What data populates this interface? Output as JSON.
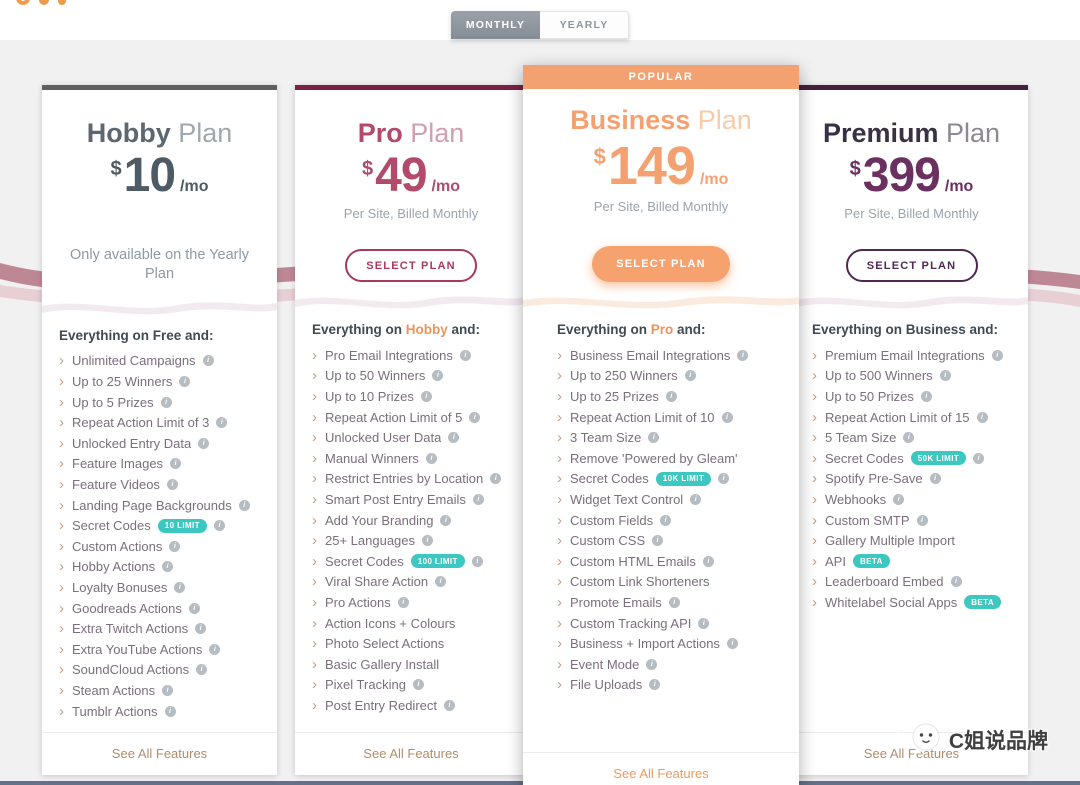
{
  "colors": {
    "page_bg": "#f1f1f2",
    "popular_orange": "#f4a172",
    "pro_crimson": "#a8395e",
    "premium_purple": "#4f2950",
    "hobby_gray": "#5d6770",
    "badge_teal": "#3cc8c1",
    "wave_mauve": "#bd8794"
  },
  "toggle": {
    "monthly_label": "MONTHLY",
    "yearly_label": "YEARLY",
    "selected": "monthly"
  },
  "plans": [
    {
      "id": "hobby",
      "title_bold": "Hobby",
      "title_light": "Plan",
      "currency": "$",
      "amount": "10",
      "period": "/mo",
      "note": "Only available on the Yearly Plan",
      "heading": {
        "prefix": "Everything on ",
        "highlight": "Free",
        "suffix": " and:"
      },
      "features": [
        {
          "label": "Unlimited Campaigns",
          "info": true
        },
        {
          "label": "Up to 25 Winners",
          "info": true
        },
        {
          "label": "Up to 5 Prizes",
          "info": true
        },
        {
          "label": "Repeat Action Limit of 3",
          "info": true
        },
        {
          "label": "Unlocked Entry Data",
          "info": true
        },
        {
          "label": "Feature Images",
          "info": true
        },
        {
          "label": "Feature Videos",
          "info": true
        },
        {
          "label": "Landing Page Backgrounds",
          "info": true
        },
        {
          "label": "Secret Codes",
          "badge": "10 LIMIT",
          "info": true
        },
        {
          "label": "Custom Actions",
          "info": true
        },
        {
          "label": "Hobby Actions",
          "info": true
        },
        {
          "label": "Loyalty Bonuses",
          "info": true
        },
        {
          "label": "Goodreads Actions",
          "info": true
        },
        {
          "label": "Extra Twitch Actions",
          "info": true
        },
        {
          "label": "Extra YouTube Actions",
          "info": true
        },
        {
          "label": "SoundCloud Actions",
          "info": true
        },
        {
          "label": "Steam Actions",
          "info": true
        },
        {
          "label": "Tumblr Actions",
          "info": true
        }
      ],
      "see_all_label": "See All Features"
    },
    {
      "id": "pro",
      "title_bold": "Pro",
      "title_light": "Plan",
      "currency": "$",
      "amount": "49",
      "period": "/mo",
      "note": "Per Site, Billed Monthly",
      "button_label": "SELECT PLAN",
      "heading": {
        "prefix": "Everything on ",
        "highlight": "Hobby",
        "suffix": " and:"
      },
      "features": [
        {
          "label": "Pro Email Integrations",
          "info": true
        },
        {
          "label": "Up to 50 Winners",
          "info": true
        },
        {
          "label": "Up to 10 Prizes",
          "info": true
        },
        {
          "label": "Repeat Action Limit of 5",
          "info": true
        },
        {
          "label": "Unlocked User Data",
          "info": true
        },
        {
          "label": "Manual Winners",
          "info": true
        },
        {
          "label": "Restrict Entries by Location",
          "info": true
        },
        {
          "label": "Smart Post Entry Emails",
          "info": true
        },
        {
          "label": "Add Your Branding",
          "info": true
        },
        {
          "label": "25+ Languages",
          "info": true
        },
        {
          "label": "Secret Codes",
          "badge": "100 LIMIT",
          "info": true
        },
        {
          "label": "Viral Share Action",
          "info": true
        },
        {
          "label": "Pro Actions",
          "info": true
        },
        {
          "label": "Action Icons + Colours",
          "info": false
        },
        {
          "label": "Photo Select Actions",
          "info": false
        },
        {
          "label": "Basic Gallery Install",
          "info": false
        },
        {
          "label": "Pixel Tracking",
          "info": true
        },
        {
          "label": "Post Entry Redirect",
          "info": true
        }
      ],
      "see_all_label": "See All Features"
    },
    {
      "id": "business",
      "popular_label": "POPULAR",
      "title_bold": "Business",
      "title_light": "Plan",
      "currency": "$",
      "amount": "149",
      "period": "/mo",
      "note": "Per Site, Billed Monthly",
      "button_label": "SELECT PLAN",
      "heading": {
        "prefix": "Everything on ",
        "highlight": "Pro",
        "suffix": " and:"
      },
      "features": [
        {
          "label": "Business Email Integrations",
          "info": true
        },
        {
          "label": "Up to 250 Winners",
          "info": true
        },
        {
          "label": "Up to 25 Prizes",
          "info": true
        },
        {
          "label": "Repeat Action Limit of 10",
          "info": true
        },
        {
          "label": "3 Team Size",
          "info": true
        },
        {
          "label": "Remove 'Powered by Gleam'",
          "info": false
        },
        {
          "label": "Secret Codes",
          "badge": "10K LIMIT",
          "info": true
        },
        {
          "label": "Widget Text Control",
          "info": true
        },
        {
          "label": "Custom Fields",
          "info": true
        },
        {
          "label": "Custom CSS",
          "info": true
        },
        {
          "label": "Custom HTML Emails",
          "info": true
        },
        {
          "label": "Custom Link Shorteners",
          "info": false
        },
        {
          "label": "Promote Emails",
          "info": true
        },
        {
          "label": "Custom Tracking API",
          "info": true
        },
        {
          "label": "Business + Import Actions",
          "info": true
        },
        {
          "label": "Event Mode",
          "info": true
        },
        {
          "label": "File Uploads",
          "info": true
        }
      ],
      "see_all_label": "See All Features"
    },
    {
      "id": "premium",
      "title_bold": "Premium",
      "title_light": "Plan",
      "currency": "$",
      "amount": "399",
      "period": "/mo",
      "note": "Per Site, Billed Monthly",
      "button_label": "SELECT PLAN",
      "heading": {
        "prefix": "Everything on ",
        "highlight": "Business",
        "suffix": " and:"
      },
      "features": [
        {
          "label": "Premium Email Integrations",
          "info": true
        },
        {
          "label": "Up to 500 Winners",
          "info": true
        },
        {
          "label": "Up to 50 Prizes",
          "info": true
        },
        {
          "label": "Repeat Action Limit of 15",
          "info": true
        },
        {
          "label": "5 Team Size",
          "info": true
        },
        {
          "label": "Secret Codes",
          "badge": "50K LIMIT",
          "info": true
        },
        {
          "label": "Spotify Pre-Save",
          "info": true
        },
        {
          "label": "Webhooks",
          "info": true
        },
        {
          "label": "Custom SMTP",
          "info": true
        },
        {
          "label": "Gallery Multiple Import",
          "info": false
        },
        {
          "label": "API",
          "badge": "BETA",
          "info": false
        },
        {
          "label": "Leaderboard Embed",
          "info": true
        },
        {
          "label": "Whitelabel Social Apps",
          "badge": "BETA",
          "info": false
        }
      ],
      "see_all_label": "See All Features"
    }
  ],
  "watermark": {
    "text": "C姐说品牌"
  }
}
